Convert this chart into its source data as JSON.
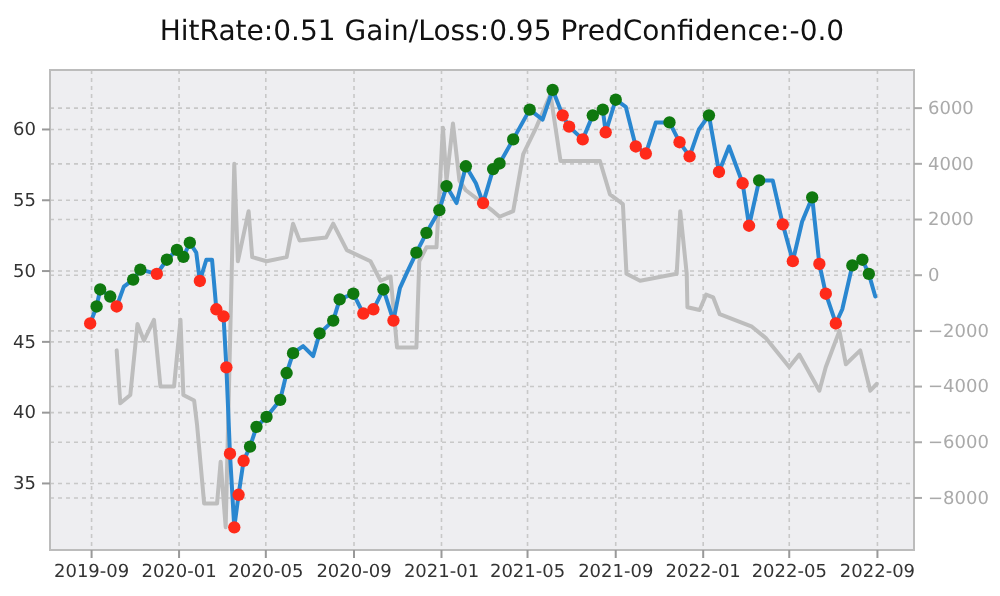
{
  "chart_data": {
    "type": "line",
    "title": "HitRate:0.51 Gain/Loss:0.95 PredConfidence:-0.0",
    "xlim": [
      "2019-07-05",
      "2022-10-22"
    ],
    "xticks": [
      {
        "value": "2019-09-01",
        "label": "2019-09"
      },
      {
        "value": "2020-01-01",
        "label": "2020-01"
      },
      {
        "value": "2020-05-01",
        "label": "2020-05"
      },
      {
        "value": "2020-09-01",
        "label": "2020-09"
      },
      {
        "value": "2021-01-01",
        "label": "2021-01"
      },
      {
        "value": "2021-05-01",
        "label": "2021-05"
      },
      {
        "value": "2021-09-01",
        "label": "2021-09"
      },
      {
        "value": "2022-01-01",
        "label": "2022-01"
      },
      {
        "value": "2022-05-01",
        "label": "2022-05"
      },
      {
        "value": "2022-09-01",
        "label": "2022-09"
      }
    ],
    "ylim": [
      30.3,
      64.2
    ],
    "yticks": [
      35,
      40,
      45,
      50,
      55,
      60
    ],
    "y2lim": [
      -9870,
      7370
    ],
    "y2ticks": [
      -8000,
      -6000,
      -4000,
      -2000,
      0,
      2000,
      4000,
      6000
    ],
    "grid": true,
    "series": [
      {
        "type": "line",
        "axis": "y2",
        "color": "#bdbdbd",
        "x": [
          "2019-10-06",
          "2019-10-11",
          "2019-10-25",
          "2019-11-04",
          "2019-11-13",
          "2019-11-27",
          "2019-12-06",
          "2019-12-25",
          "2020-01-03",
          "2020-01-07",
          "2020-01-22",
          "2020-01-26",
          "2020-02-05",
          "2020-02-23",
          "2020-02-28",
          "2020-03-06",
          "2020-03-18",
          "2020-03-23",
          "2020-04-07",
          "2020-04-12",
          "2020-05-02",
          "2020-05-30",
          "2020-06-08",
          "2020-06-17",
          "2020-07-24",
          "2020-08-03",
          "2020-08-22",
          "2020-09-24",
          "2020-10-08",
          "2020-10-22",
          "2020-10-31",
          "2020-11-27",
          "2020-12-01",
          "2020-12-11",
          "2020-12-25",
          "2021-01-03",
          "2021-01-08",
          "2021-01-17",
          "2021-01-26",
          "2021-02-04",
          "2021-03-14",
          "2021-03-23",
          "2021-04-11",
          "2021-04-25",
          "2021-05-13",
          "2021-06-02",
          "2021-06-16",
          "2021-08-10",
          "2021-08-24",
          "2021-09-11",
          "2021-09-16",
          "2021-10-05",
          "2021-11-25",
          "2021-11-30",
          "2021-12-09",
          "2021-12-10",
          "2021-12-27",
          "2022-01-05",
          "2022-01-15",
          "2022-01-24",
          "2022-03-10",
          "2022-03-29",
          "2022-05-01",
          "2022-05-15",
          "2022-06-12",
          "2022-06-21",
          "2022-07-10",
          "2022-07-19",
          "2022-08-08",
          "2022-08-22",
          "2022-08-31"
        ],
        "values": [
          -2700,
          -4600,
          -4300,
          -1750,
          -2350,
          -1600,
          -4000,
          -4000,
          -1600,
          -4300,
          -4500,
          -5350,
          -8200,
          -8200,
          -6700,
          -9050,
          4000,
          500,
          2300,
          650,
          500,
          650,
          1850,
          1250,
          1350,
          1850,
          900,
          500,
          -200,
          -50,
          -2600,
          -2600,
          500,
          1000,
          1000,
          5300,
          3400,
          5450,
          3400,
          3050,
          2300,
          2100,
          2300,
          4350,
          5300,
          6500,
          4100,
          4100,
          2900,
          2550,
          50,
          -200,
          50,
          2300,
          50,
          -1150,
          -1250,
          -700,
          -800,
          -1400,
          -1850,
          -2250,
          -3300,
          -2850,
          -4150,
          -3300,
          -2000,
          -3200,
          -2700,
          -4150,
          -3900
        ]
      },
      {
        "type": "line",
        "color": "#2a87d0",
        "x": [
          "2019-08-30",
          "2019-09-08",
          "2019-09-13",
          "2019-09-27",
          "2019-10-06",
          "2019-10-16",
          "2019-10-29",
          "2019-11-08",
          "2019-12-01",
          "2019-12-15",
          "2019-12-29",
          "2020-01-07",
          "2020-01-16",
          "2020-01-25",
          "2020-01-30",
          "2020-02-08",
          "2020-02-16",
          "2020-02-22",
          "2020-03-03",
          "2020-03-07",
          "2020-03-12",
          "2020-03-18",
          "2020-03-24",
          "2020-03-31",
          "2020-04-09",
          "2020-04-18",
          "2020-05-02",
          "2020-05-21",
          "2020-05-30",
          "2020-06-08",
          "2020-06-22",
          "2020-07-06",
          "2020-07-15",
          "2020-08-03",
          "2020-08-12",
          "2020-08-31",
          "2020-09-14",
          "2020-09-28",
          "2020-10-12",
          "2020-10-26",
          "2020-11-04",
          "2020-11-13",
          "2020-11-27",
          "2020-12-11",
          "2020-12-29",
          "2021-01-08",
          "2021-01-22",
          "2021-02-04",
          "2021-02-18",
          "2021-02-28",
          "2021-03-14",
          "2021-03-23",
          "2021-04-11",
          "2021-05-04",
          "2021-05-22",
          "2021-06-05",
          "2021-06-19",
          "2021-06-28",
          "2021-07-17",
          "2021-07-31",
          "2021-08-14",
          "2021-08-18",
          "2021-09-01",
          "2021-09-15",
          "2021-09-29",
          "2021-10-13",
          "2021-10-27",
          "2021-11-15",
          "2021-11-29",
          "2021-12-13",
          "2021-12-26",
          "2022-01-09",
          "2022-01-23",
          "2022-02-06",
          "2022-02-25",
          "2022-03-06",
          "2022-03-20",
          "2022-04-08",
          "2022-04-22",
          "2022-05-06",
          "2022-05-19",
          "2022-06-02",
          "2022-06-12",
          "2022-06-21",
          "2022-07-05",
          "2022-07-14",
          "2022-07-28",
          "2022-08-11",
          "2022-08-20",
          "2022-08-29"
        ],
        "values": [
          46.3,
          47.5,
          48.7,
          48.2,
          47.5,
          48.9,
          49.4,
          50.1,
          49.8,
          50.8,
          51.5,
          51.0,
          52.0,
          51.3,
          49.3,
          50.8,
          50.8,
          47.3,
          46.8,
          43.2,
          37.1,
          31.9,
          34.2,
          36.6,
          37.6,
          39.0,
          39.7,
          40.9,
          42.8,
          44.2,
          44.7,
          44.0,
          45.6,
          46.5,
          48.0,
          48.4,
          47.0,
          47.3,
          48.7,
          46.5,
          48.8,
          49.8,
          51.3,
          52.7,
          54.3,
          56.0,
          54.8,
          57.4,
          56.2,
          54.8,
          57.2,
          57.6,
          59.3,
          61.4,
          60.7,
          62.8,
          61.0,
          60.2,
          59.3,
          61.0,
          61.4,
          59.8,
          62.1,
          61.6,
          58.8,
          58.3,
          60.5,
          60.5,
          59.1,
          58.1,
          60.0,
          61.0,
          57.0,
          58.8,
          56.2,
          53.2,
          56.4,
          56.4,
          53.3,
          50.7,
          53.5,
          55.2,
          50.5,
          48.4,
          46.3,
          47.3,
          50.4,
          50.8,
          49.8,
          48.2
        ]
      },
      {
        "type": "scatter",
        "marker": "circle",
        "color": "#0f780f",
        "x": [
          "2019-09-08",
          "2019-09-13",
          "2019-09-27",
          "2019-10-29",
          "2019-11-08",
          "2019-12-15",
          "2019-12-29",
          "2020-01-07",
          "2020-01-16",
          "2020-04-09",
          "2020-04-18",
          "2020-05-02",
          "2020-05-21",
          "2020-05-30",
          "2020-06-08",
          "2020-07-15",
          "2020-08-03",
          "2020-08-12",
          "2020-08-31",
          "2020-10-12",
          "2020-11-27",
          "2020-12-11",
          "2020-12-29",
          "2021-01-08",
          "2021-02-04",
          "2021-03-14",
          "2021-03-23",
          "2021-04-11",
          "2021-05-04",
          "2021-06-05",
          "2021-07-31",
          "2021-08-14",
          "2021-09-01",
          "2021-11-15",
          "2022-01-09",
          "2022-03-20",
          "2022-06-02",
          "2022-07-28",
          "2022-08-11",
          "2022-08-20"
        ],
        "values": [
          47.5,
          48.7,
          48.2,
          49.4,
          50.1,
          50.8,
          51.5,
          51.0,
          52.0,
          37.6,
          39.0,
          39.7,
          40.9,
          42.8,
          44.2,
          45.6,
          46.5,
          48.0,
          48.4,
          48.7,
          51.3,
          52.7,
          54.3,
          56.0,
          57.4,
          57.2,
          57.6,
          59.3,
          61.4,
          62.8,
          61.0,
          61.4,
          62.1,
          60.5,
          61.0,
          56.4,
          55.2,
          50.4,
          50.8,
          49.8
        ]
      },
      {
        "type": "scatter",
        "marker": "circle",
        "color": "#ff2a1a",
        "x": [
          "2019-08-30",
          "2019-10-06",
          "2019-12-01",
          "2020-01-30",
          "2020-02-22",
          "2020-03-03",
          "2020-03-07",
          "2020-03-12",
          "2020-03-18",
          "2020-03-24",
          "2020-03-31",
          "2020-09-14",
          "2020-09-28",
          "2020-10-26",
          "2021-02-28",
          "2021-06-19",
          "2021-06-28",
          "2021-07-17",
          "2021-08-18",
          "2021-09-29",
          "2021-10-13",
          "2021-11-29",
          "2021-12-13",
          "2022-01-23",
          "2022-02-25",
          "2022-03-06",
          "2022-04-22",
          "2022-05-06",
          "2022-06-12",
          "2022-06-21",
          "2022-07-05"
        ],
        "values": [
          46.3,
          47.5,
          49.8,
          49.3,
          47.3,
          46.8,
          43.2,
          37.1,
          31.9,
          34.2,
          36.6,
          47.0,
          47.3,
          46.5,
          54.8,
          61.0,
          60.2,
          59.3,
          59.8,
          58.8,
          58.3,
          59.1,
          58.1,
          57.0,
          56.2,
          53.2,
          53.3,
          50.7,
          50.5,
          48.4,
          46.3
        ]
      }
    ]
  }
}
